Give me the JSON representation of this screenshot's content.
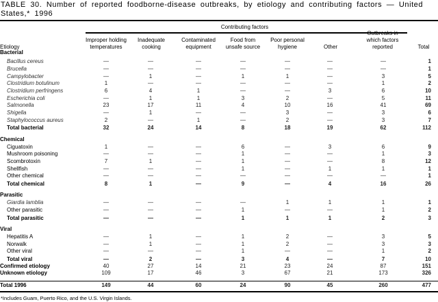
{
  "title": "TABLE 30. Number of reported foodborne-disease outbreaks, by etiology and contributing factors — United States,* 1996",
  "group_header": "Contributing factors",
  "columns": [
    "Etiology",
    "Improper holding temperatures",
    "Inadequate cooking",
    "Contaminated equipment",
    "Food from unsafe source",
    "Poor personal hygiene",
    "Other",
    "Outbreaks in which factors reported",
    "Total"
  ],
  "rows": [
    {
      "label": "Bacterial",
      "type": "group",
      "values": []
    },
    {
      "label": "Bacillus cereus",
      "type": "italic",
      "values": [
        "—",
        "—",
        "—",
        "—",
        "—",
        "—",
        "—",
        "1"
      ]
    },
    {
      "label": "Brucella",
      "type": "italic",
      "values": [
        "—",
        "—",
        "—",
        "—",
        "—",
        "—",
        "—",
        "1"
      ]
    },
    {
      "label": "Campylobacter",
      "type": "italic",
      "values": [
        "—",
        "1",
        "—",
        "1",
        "1",
        "—",
        "3",
        "5"
      ]
    },
    {
      "label": "Clostridium botulinum",
      "type": "italic",
      "values": [
        "1",
        "—",
        "—",
        "—",
        "—",
        "—",
        "1",
        "2"
      ]
    },
    {
      "label": "Clostridium perfringens",
      "type": "italic",
      "values": [
        "6",
        "4",
        "1",
        "—",
        "—",
        "3",
        "6",
        "10"
      ]
    },
    {
      "label": "Escherichia coli",
      "type": "italic",
      "values": [
        "—",
        "1",
        "1",
        "3",
        "2",
        "—",
        "5",
        "11"
      ]
    },
    {
      "label": "Salmonella",
      "type": "italic",
      "values": [
        "23",
        "17",
        "11",
        "4",
        "10",
        "16",
        "41",
        "69"
      ]
    },
    {
      "label": "Shigella",
      "type": "italic",
      "values": [
        "—",
        "1",
        "—",
        "—",
        "3",
        "—",
        "3",
        "6"
      ]
    },
    {
      "label": "Staphylococcus aureus",
      "type": "italic",
      "values": [
        "2",
        "—",
        "1",
        "—",
        "2",
        "—",
        "3",
        "7"
      ]
    },
    {
      "label": "Total bacterial",
      "type": "total",
      "values": [
        "32",
        "24",
        "14",
        "8",
        "18",
        "19",
        "62",
        "112"
      ]
    },
    {
      "label": "Chemical",
      "type": "group",
      "values": []
    },
    {
      "label": "Ciguatoxin",
      "type": "sub",
      "values": [
        "1",
        "—",
        "—",
        "6",
        "—",
        "3",
        "6",
        "9"
      ]
    },
    {
      "label": "Mushroom poisoning",
      "type": "sub",
      "values": [
        "—",
        "—",
        "—",
        "1",
        "—",
        "—",
        "1",
        "3"
      ]
    },
    {
      "label": "Scombrotoxin",
      "type": "sub",
      "values": [
        "7",
        "1",
        "—",
        "1",
        "—",
        "—",
        "8",
        "12"
      ]
    },
    {
      "label": "Shellfish",
      "type": "sub",
      "values": [
        "—",
        "—",
        "—",
        "1",
        "—",
        "1",
        "1",
        "1"
      ]
    },
    {
      "label": "Other chemical",
      "type": "sub",
      "values": [
        "—",
        "—",
        "—",
        "—",
        "—",
        "—",
        "—",
        "1"
      ]
    },
    {
      "label": "Total chemical",
      "type": "total",
      "values": [
        "8",
        "1",
        "—",
        "9",
        "—",
        "4",
        "16",
        "26"
      ]
    },
    {
      "label": "Parasitic",
      "type": "group",
      "values": []
    },
    {
      "label": "Giardia lamblia",
      "type": "italic",
      "values": [
        "—",
        "—",
        "—",
        "—",
        "1",
        "1",
        "1",
        "1"
      ]
    },
    {
      "label": "Other parasitic",
      "type": "sub",
      "values": [
        "—",
        "—",
        "—",
        "1",
        "—",
        "—",
        "1",
        "2"
      ]
    },
    {
      "label": "Total parasitic",
      "type": "total",
      "values": [
        "—",
        "—",
        "—",
        "1",
        "1",
        "1",
        "2",
        "3"
      ]
    },
    {
      "label": "Viral",
      "type": "group",
      "values": []
    },
    {
      "label": "Hepatitis A",
      "type": "sub",
      "values": [
        "—",
        "1",
        "—",
        "1",
        "2",
        "—",
        "3",
        "5"
      ]
    },
    {
      "label": "Norwalk",
      "type": "sub",
      "values": [
        "—",
        "1",
        "—",
        "1",
        "2",
        "—",
        "3",
        "3"
      ]
    },
    {
      "label": "Other viral",
      "type": "sub",
      "values": [
        "—",
        "—",
        "—",
        "1",
        "—",
        "—",
        "1",
        "2"
      ]
    },
    {
      "label": "Total viral",
      "type": "total",
      "values": [
        "—",
        "2",
        "—",
        "3",
        "4",
        "—",
        "7",
        "10"
      ]
    },
    {
      "label": "Confirmed etiology",
      "type": "summary",
      "values": [
        "40",
        "27",
        "14",
        "21",
        "23",
        "24",
        "87",
        "151"
      ]
    },
    {
      "label": "Unknown etiology",
      "type": "summary",
      "values": [
        "109",
        "17",
        "46",
        "3",
        "67",
        "21",
        "173",
        "326"
      ]
    },
    {
      "label": "Total 1996",
      "type": "grand",
      "values": [
        "149",
        "44",
        "60",
        "24",
        "90",
        "45",
        "260",
        "477"
      ]
    }
  ],
  "footnote": "*Includes Guam, Puerto Rico, and the U.S. Virgin Islands."
}
